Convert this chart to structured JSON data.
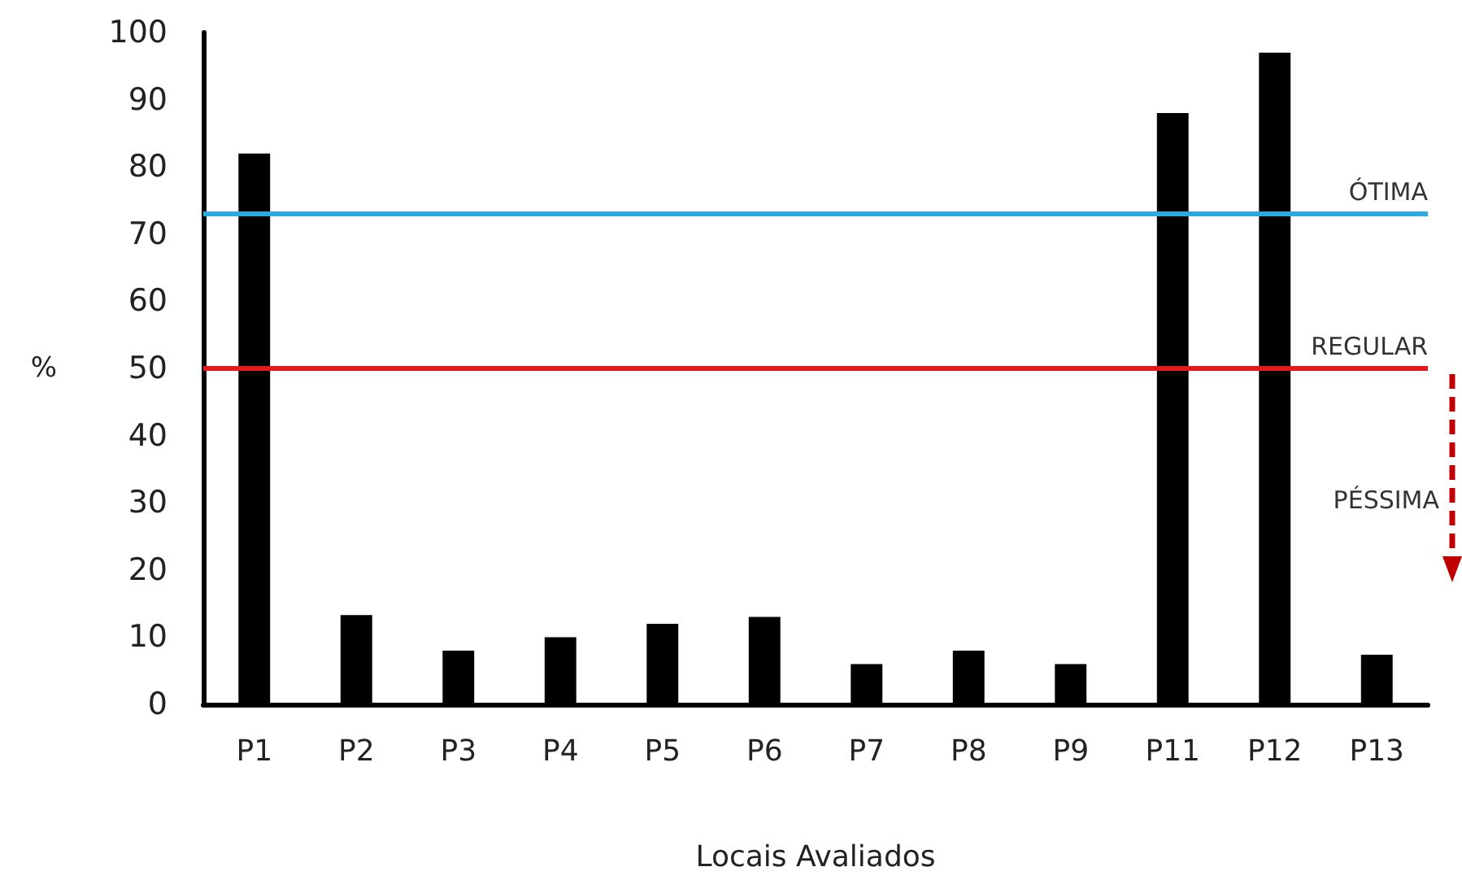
{
  "chart_data": {
    "type": "bar",
    "xlabel": "Locais Avaliados",
    "ylabel": "%",
    "categories": [
      "P1",
      "P2",
      "P3",
      "P4",
      "P5",
      "P6",
      "P7",
      "P8",
      "P9",
      "P11",
      "P12",
      "P13"
    ],
    "values": [
      82,
      13.3,
      8,
      10,
      12,
      13,
      6,
      8,
      6,
      88,
      97,
      7.4
    ],
    "color": "#000000",
    "ylim": [
      0,
      100
    ],
    "yticks": [
      0,
      10,
      20,
      30,
      40,
      50,
      60,
      70,
      80,
      90,
      100
    ],
    "grid": false,
    "ref_lines": [
      {
        "axis": "y",
        "value": 73,
        "label": "ÓTIMA",
        "color": "#2ea9df"
      },
      {
        "axis": "y",
        "value": 50,
        "label": "REGULAR",
        "color": "#e31a1c"
      }
    ],
    "annotations": [
      "PÉSSIMA"
    ]
  }
}
